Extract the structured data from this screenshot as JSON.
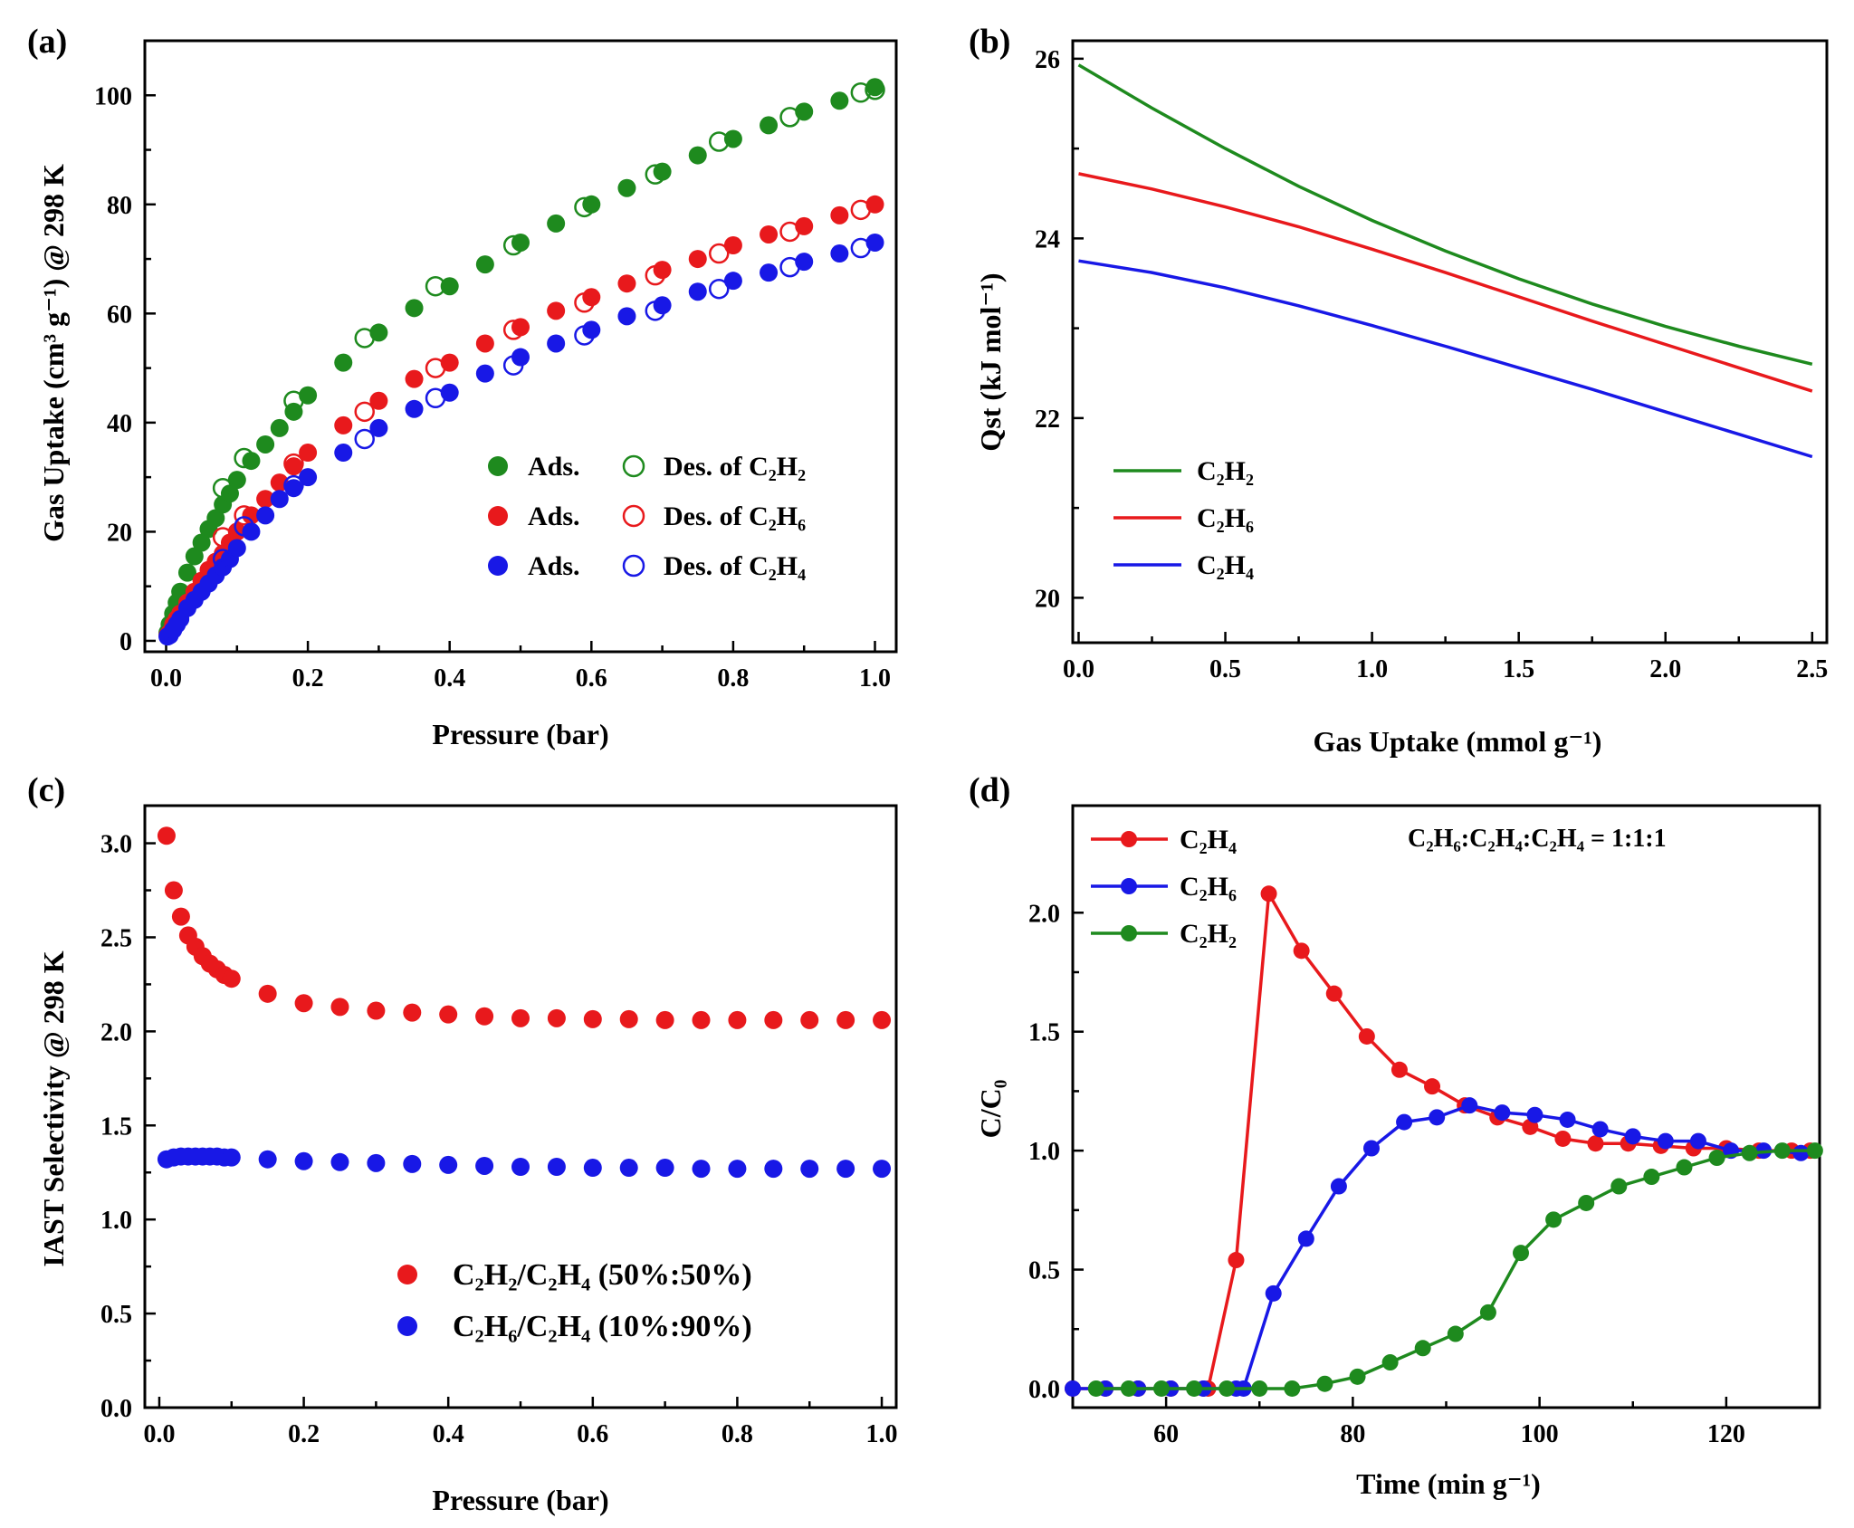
{
  "colors": {
    "green": "#1e8a1e",
    "red": "#e8191c",
    "blue": "#1818e6",
    "axis": "#000000"
  },
  "panels": {
    "a": {
      "label": "(a)",
      "xlabel": "Pressure (bar)",
      "ylabel": "Gas Uptake (cm³ g⁻¹) @ 298 K"
    },
    "b": {
      "label": "(b)",
      "xlabel": "Gas Uptake (mmol g⁻¹)",
      "ylabel": "Qst (kJ mol⁻¹)"
    },
    "c": {
      "label": "(c)",
      "xlabel": "Pressure (bar)",
      "ylabel": "IAST Selectivity @ 298 K"
    },
    "d": {
      "label": "(d)",
      "xlabel": "Time (min g⁻¹)",
      "ylabel": "C/C₀",
      "annotation": "C₂H₆:C₂H₄:C₂H₄ = 1:1:1"
    }
  },
  "chart_data": [
    {
      "id": "a",
      "type": "scatter",
      "xlabel": "Pressure (bar)",
      "ylabel": "Gas Uptake (cm³ g⁻¹) @ 298 K",
      "xlim": [
        -0.03,
        1.03
      ],
      "ylim": [
        -2,
        110
      ],
      "xticks": [
        "0.0",
        "0.2",
        "0.4",
        "0.6",
        "0.8",
        "1.0"
      ],
      "yticks": [
        "0",
        "20",
        "40",
        "60",
        "80",
        "100"
      ],
      "legend_position": "bottom-right",
      "legend": [
        {
          "ads": "Ads.",
          "des": "Des. of C₂H₂"
        },
        {
          "ads": "Ads.",
          "des": "Des. of C₂H₆"
        },
        {
          "ads": "Ads.",
          "des": "Des. of C₂H₄"
        }
      ],
      "series": [
        {
          "name": "C2H2",
          "color": "green",
          "ads": {
            "x": [
              0.002,
              0.005,
              0.01,
              0.015,
              0.02,
              0.03,
              0.04,
              0.05,
              0.06,
              0.07,
              0.08,
              0.09,
              0.1,
              0.12,
              0.14,
              0.16,
              0.18,
              0.2,
              0.25,
              0.3,
              0.35,
              0.4,
              0.45,
              0.5,
              0.55,
              0.6,
              0.65,
              0.7,
              0.75,
              0.8,
              0.85,
              0.9,
              0.95,
              1.0
            ],
            "y": [
              1.5,
              3,
              5,
              7,
              9,
              12.5,
              15.5,
              18,
              20.5,
              22.5,
              25,
              27,
              29.5,
              33,
              36,
              39,
              42,
              45,
              51,
              56.5,
              61,
              65,
              69,
              73,
              76.5,
              80,
              83,
              86,
              89,
              92,
              94.5,
              97,
              99,
              101.5
            ]
          },
          "des": {
            "x": [
              1.0,
              0.98,
              0.88,
              0.78,
              0.69,
              0.59,
              0.49,
              0.38,
              0.28,
              0.18,
              0.11,
              0.08
            ],
            "y": [
              101,
              100.5,
              96,
              91.5,
              85.5,
              79.5,
              72.5,
              65,
              55.5,
              44,
              33.5,
              28
            ]
          }
        },
        {
          "name": "C2H6",
          "color": "red",
          "ads": {
            "x": [
              0.002,
              0.005,
              0.01,
              0.015,
              0.02,
              0.03,
              0.04,
              0.05,
              0.06,
              0.07,
              0.08,
              0.09,
              0.1,
              0.12,
              0.14,
              0.16,
              0.18,
              0.2,
              0.25,
              0.3,
              0.35,
              0.4,
              0.45,
              0.5,
              0.55,
              0.6,
              0.65,
              0.7,
              0.75,
              0.8,
              0.85,
              0.9,
              0.95,
              1.0
            ],
            "y": [
              1,
              1.5,
              3,
              4,
              5,
              7,
              9,
              11,
              13,
              14.5,
              16,
              18,
              20,
              23,
              26,
              29,
              32,
              34.5,
              39.5,
              44,
              48,
              51,
              54.5,
              57.5,
              60.5,
              63,
              65.5,
              68,
              70,
              72.5,
              74.5,
              76,
              78,
              80
            ]
          },
          "des": {
            "x": [
              0.98,
              0.88,
              0.78,
              0.69,
              0.59,
              0.49,
              0.38,
              0.28,
              0.18,
              0.11,
              0.08
            ],
            "y": [
              79,
              75,
              71,
              67,
              62,
              57,
              50,
              42,
              32.5,
              23,
              19
            ]
          }
        },
        {
          "name": "C2H4",
          "color": "blue",
          "ads": {
            "x": [
              0.002,
              0.005,
              0.01,
              0.015,
              0.02,
              0.03,
              0.04,
              0.05,
              0.06,
              0.07,
              0.08,
              0.09,
              0.1,
              0.12,
              0.14,
              0.16,
              0.18,
              0.2,
              0.25,
              0.3,
              0.35,
              0.4,
              0.45,
              0.5,
              0.55,
              0.6,
              0.65,
              0.7,
              0.75,
              0.8,
              0.85,
              0.9,
              0.95,
              1.0
            ],
            "y": [
              0.8,
              1,
              2,
              3,
              4,
              6,
              7.5,
              9,
              10.5,
              12,
              13.5,
              15,
              17,
              20,
              23,
              26,
              28,
              30,
              34.5,
              39,
              42.5,
              45.5,
              49,
              52,
              54.5,
              57,
              59.5,
              61.5,
              64,
              66,
              67.5,
              69.5,
              71,
              73
            ]
          },
          "des": {
            "x": [
              0.98,
              0.88,
              0.78,
              0.69,
              0.59,
              0.49,
              0.38,
              0.28,
              0.18,
              0.11,
              0.08
            ],
            "y": [
              72,
              68.5,
              64.5,
              60.5,
              56,
              50.5,
              44.5,
              37,
              28.5,
              21,
              15
            ]
          }
        }
      ]
    },
    {
      "id": "b",
      "type": "line",
      "xlabel": "Gas Uptake (mmol g⁻¹)",
      "ylabel": "Qst (kJ mol⁻¹)",
      "xlim": [
        -0.02,
        2.55
      ],
      "ylim": [
        19.5,
        26.2
      ],
      "xticks": [
        "0.0",
        "0.5",
        "1.0",
        "1.5",
        "2.0",
        "2.5"
      ],
      "yticks": [
        "20",
        "22",
        "24",
        "26"
      ],
      "legend_position": "bottom-left",
      "series": [
        {
          "name": "C₂H₂",
          "color": "green",
          "x": [
            0,
            0.25,
            0.5,
            0.75,
            1.0,
            1.25,
            1.5,
            1.75,
            2.0,
            2.25,
            2.5
          ],
          "y": [
            25.93,
            25.45,
            25.0,
            24.58,
            24.2,
            23.86,
            23.55,
            23.27,
            23.02,
            22.8,
            22.6
          ]
        },
        {
          "name": "C₂H₆",
          "color": "red",
          "x": [
            0,
            0.25,
            0.5,
            0.75,
            1.0,
            1.25,
            1.5,
            1.75,
            2.0,
            2.25,
            2.5
          ],
          "y": [
            24.72,
            24.55,
            24.35,
            24.13,
            23.88,
            23.62,
            23.35,
            23.08,
            22.82,
            22.56,
            22.3
          ]
        },
        {
          "name": "C₂H₄",
          "color": "blue",
          "x": [
            0,
            0.25,
            0.5,
            0.75,
            1.0,
            1.25,
            1.5,
            1.75,
            2.0,
            2.25,
            2.5
          ],
          "y": [
            23.75,
            23.62,
            23.45,
            23.25,
            23.03,
            22.8,
            22.56,
            22.32,
            22.07,
            21.82,
            21.57
          ]
        }
      ]
    },
    {
      "id": "c",
      "type": "scatter",
      "xlabel": "Pressure (bar)",
      "ylabel": "IAST Selectivity @ 298 K",
      "xlim": [
        -0.02,
        1.02
      ],
      "ylim": [
        0,
        3.2
      ],
      "xticks": [
        "0.0",
        "0.2",
        "0.4",
        "0.6",
        "0.8",
        "1.0"
      ],
      "yticks": [
        "0.0",
        "0.5",
        "1.0",
        "1.5",
        "2.0",
        "2.5",
        "3.0"
      ],
      "legend_position": "bottom-right",
      "series": [
        {
          "name": "C₂H₂/C₂H₄ (50%:50%)",
          "color": "red",
          "x": [
            0.01,
            0.02,
            0.03,
            0.04,
            0.05,
            0.06,
            0.07,
            0.08,
            0.09,
            0.1,
            0.15,
            0.2,
            0.25,
            0.3,
            0.35,
            0.4,
            0.45,
            0.5,
            0.55,
            0.6,
            0.65,
            0.7,
            0.75,
            0.8,
            0.85,
            0.9,
            0.95,
            1.0
          ],
          "y": [
            3.04,
            2.75,
            2.61,
            2.51,
            2.45,
            2.4,
            2.36,
            2.33,
            2.3,
            2.28,
            2.2,
            2.15,
            2.13,
            2.11,
            2.1,
            2.09,
            2.08,
            2.07,
            2.07,
            2.065,
            2.065,
            2.06,
            2.06,
            2.06,
            2.06,
            2.06,
            2.06,
            2.06
          ]
        },
        {
          "name": "C₂H₆/C₂H₄ (10%:90%)",
          "color": "blue",
          "x": [
            0.01,
            0.02,
            0.03,
            0.04,
            0.05,
            0.06,
            0.07,
            0.08,
            0.09,
            0.1,
            0.15,
            0.2,
            0.25,
            0.3,
            0.35,
            0.4,
            0.45,
            0.5,
            0.55,
            0.6,
            0.65,
            0.7,
            0.75,
            0.8,
            0.85,
            0.9,
            0.95,
            1.0
          ],
          "y": [
            1.32,
            1.33,
            1.335,
            1.335,
            1.335,
            1.335,
            1.335,
            1.335,
            1.33,
            1.33,
            1.32,
            1.31,
            1.305,
            1.3,
            1.295,
            1.29,
            1.285,
            1.28,
            1.28,
            1.275,
            1.275,
            1.275,
            1.27,
            1.27,
            1.27,
            1.27,
            1.27,
            1.27
          ]
        }
      ]
    },
    {
      "id": "d",
      "type": "line",
      "xlabel": "Time (min g⁻¹)",
      "ylabel": "C/C₀",
      "xlim": [
        50,
        130
      ],
      "ylim": [
        -0.08,
        2.45
      ],
      "xticks": [
        "60",
        "80",
        "100",
        "120"
      ],
      "yticks": [
        "0.0",
        "0.5",
        "1.0",
        "1.5",
        "2.0"
      ],
      "legend_position": "top-left",
      "series": [
        {
          "name": "C₂H₄",
          "color": "red",
          "x": [
            50,
            53.5,
            57,
            60.5,
            64,
            64.5,
            67.5,
            71,
            74.5,
            78,
            81.5,
            85,
            88.5,
            92,
            95.5,
            99,
            102.5,
            106,
            109.5,
            113,
            116.5,
            120,
            123.5,
            127,
            129
          ],
          "y": [
            0,
            0,
            0,
            0,
            0,
            0,
            0.54,
            2.08,
            1.84,
            1.66,
            1.48,
            1.34,
            1.27,
            1.19,
            1.14,
            1.1,
            1.05,
            1.03,
            1.03,
            1.02,
            1.01,
            1.01,
            1.0,
            1.0,
            1.0
          ]
        },
        {
          "name": "C₂H₆",
          "color": "blue",
          "x": [
            50,
            53.5,
            57,
            60.5,
            64,
            67.5,
            68.3,
            71.5,
            75,
            78.5,
            82,
            85.5,
            89,
            92.5,
            96,
            99.5,
            103,
            106.5,
            110,
            113.5,
            117,
            120.5,
            124,
            128
          ],
          "y": [
            0,
            0,
            0,
            0,
            0,
            0,
            0,
            0.4,
            0.63,
            0.85,
            1.01,
            1.12,
            1.14,
            1.19,
            1.16,
            1.15,
            1.13,
            1.09,
            1.06,
            1.04,
            1.04,
            1.0,
            1.0,
            0.99
          ]
        },
        {
          "name": "C₂H₂",
          "color": "green",
          "x": [
            52.5,
            56,
            59.5,
            63,
            66.5,
            70,
            73.5,
            77,
            80.5,
            84,
            87.5,
            91,
            94.5,
            98,
            101.5,
            105,
            108.5,
            112,
            115.5,
            119,
            122.5,
            126,
            129.5
          ],
          "y": [
            0,
            0,
            0,
            0,
            0,
            0,
            0,
            0.02,
            0.05,
            0.11,
            0.17,
            0.23,
            0.32,
            0.57,
            0.71,
            0.78,
            0.85,
            0.89,
            0.93,
            0.97,
            0.99,
            1.0,
            1.0
          ]
        }
      ]
    }
  ]
}
